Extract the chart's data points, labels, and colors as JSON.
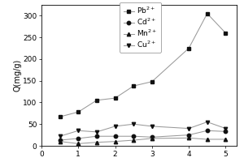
{
  "x": [
    0.5,
    1.0,
    1.5,
    2.0,
    2.5,
    3.0,
    4.0,
    4.5,
    5.0
  ],
  "Pb": [
    67,
    78,
    105,
    110,
    138,
    148,
    225,
    305,
    260
  ],
  "Cd": [
    13,
    17,
    22,
    22,
    22,
    20,
    25,
    35,
    33
  ],
  "Mn": [
    10,
    5,
    8,
    10,
    13,
    17,
    18,
    15,
    15
  ],
  "Cu": [
    22,
    35,
    32,
    45,
    50,
    45,
    40,
    55,
    40
  ],
  "xlim": [
    0,
    5.3
  ],
  "ylim": [
    0,
    325
  ],
  "ylabel": "Q(mg/g)",
  "xticks": [
    0,
    1,
    2,
    3,
    4,
    5
  ],
  "yticks": [
    0,
    50,
    100,
    150,
    200,
    250,
    300
  ],
  "line_color": "#999999",
  "marker_color": "#111111",
  "legend_labels": [
    "Pb$^{2+}$",
    "Cd$^{2+}$",
    "Mn$^{2+}$",
    "Cu$^{2+}$"
  ],
  "legend_markers": [
    "s",
    "o",
    "^",
    "v"
  ],
  "axis_fontsize": 7,
  "tick_fontsize": 6.5,
  "legend_fontsize": 6.5
}
